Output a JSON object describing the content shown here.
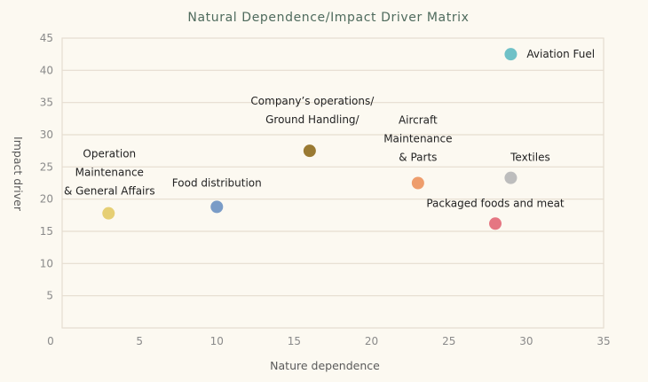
{
  "chart_data": {
    "type": "scatter",
    "title": "Natural Dependence/Impact Driver Matrix",
    "xlabel": "Nature dependence",
    "ylabel": "Impact driver",
    "xlim": [
      0,
      35
    ],
    "ylim": [
      0,
      45
    ],
    "xticks": [
      0,
      5,
      10,
      15,
      20,
      25,
      30,
      35
    ],
    "yticks": [
      5,
      10,
      15,
      20,
      25,
      30,
      35,
      40,
      45
    ],
    "grid": true,
    "points": [
      {
        "label": "Aviation Fuel",
        "label_lines": [
          "Aviation Fuel"
        ],
        "x": 29,
        "y": 42.5,
        "color": "#6fc1c7"
      },
      {
        "label": "Company's operations/ Ground Handling/",
        "label_lines": [
          "Company’s  operations/",
          "Ground Handling/"
        ],
        "x": 16,
        "y": 27.5,
        "color": "#9a7a33"
      },
      {
        "label": "Aircraft Maintenance & Parts",
        "label_lines": [
          "Aircraft",
          "Maintenance",
          "& Parts"
        ],
        "x": 23,
        "y": 22.5,
        "color": "#ee9d6c"
      },
      {
        "label": "Textiles",
        "label_lines": [
          "Textiles"
        ],
        "x": 29,
        "y": 23.3,
        "color": "#bdbdbd"
      },
      {
        "label": "Packaged foods and meat",
        "label_lines": [
          "Packaged foods and meat"
        ],
        "x": 28,
        "y": 16.2,
        "color": "#e57682"
      },
      {
        "label": "Operation Maintenance & General Affairs",
        "label_lines": [
          "Operation",
          "Maintenance",
          "& General Affairs"
        ],
        "x": 3,
        "y": 17.8,
        "color": "#e6cf74"
      },
      {
        "label": "Food distribution",
        "label_lines": [
          "Food distribution"
        ],
        "x": 10,
        "y": 18.8,
        "color": "#7a9cc7"
      }
    ]
  }
}
